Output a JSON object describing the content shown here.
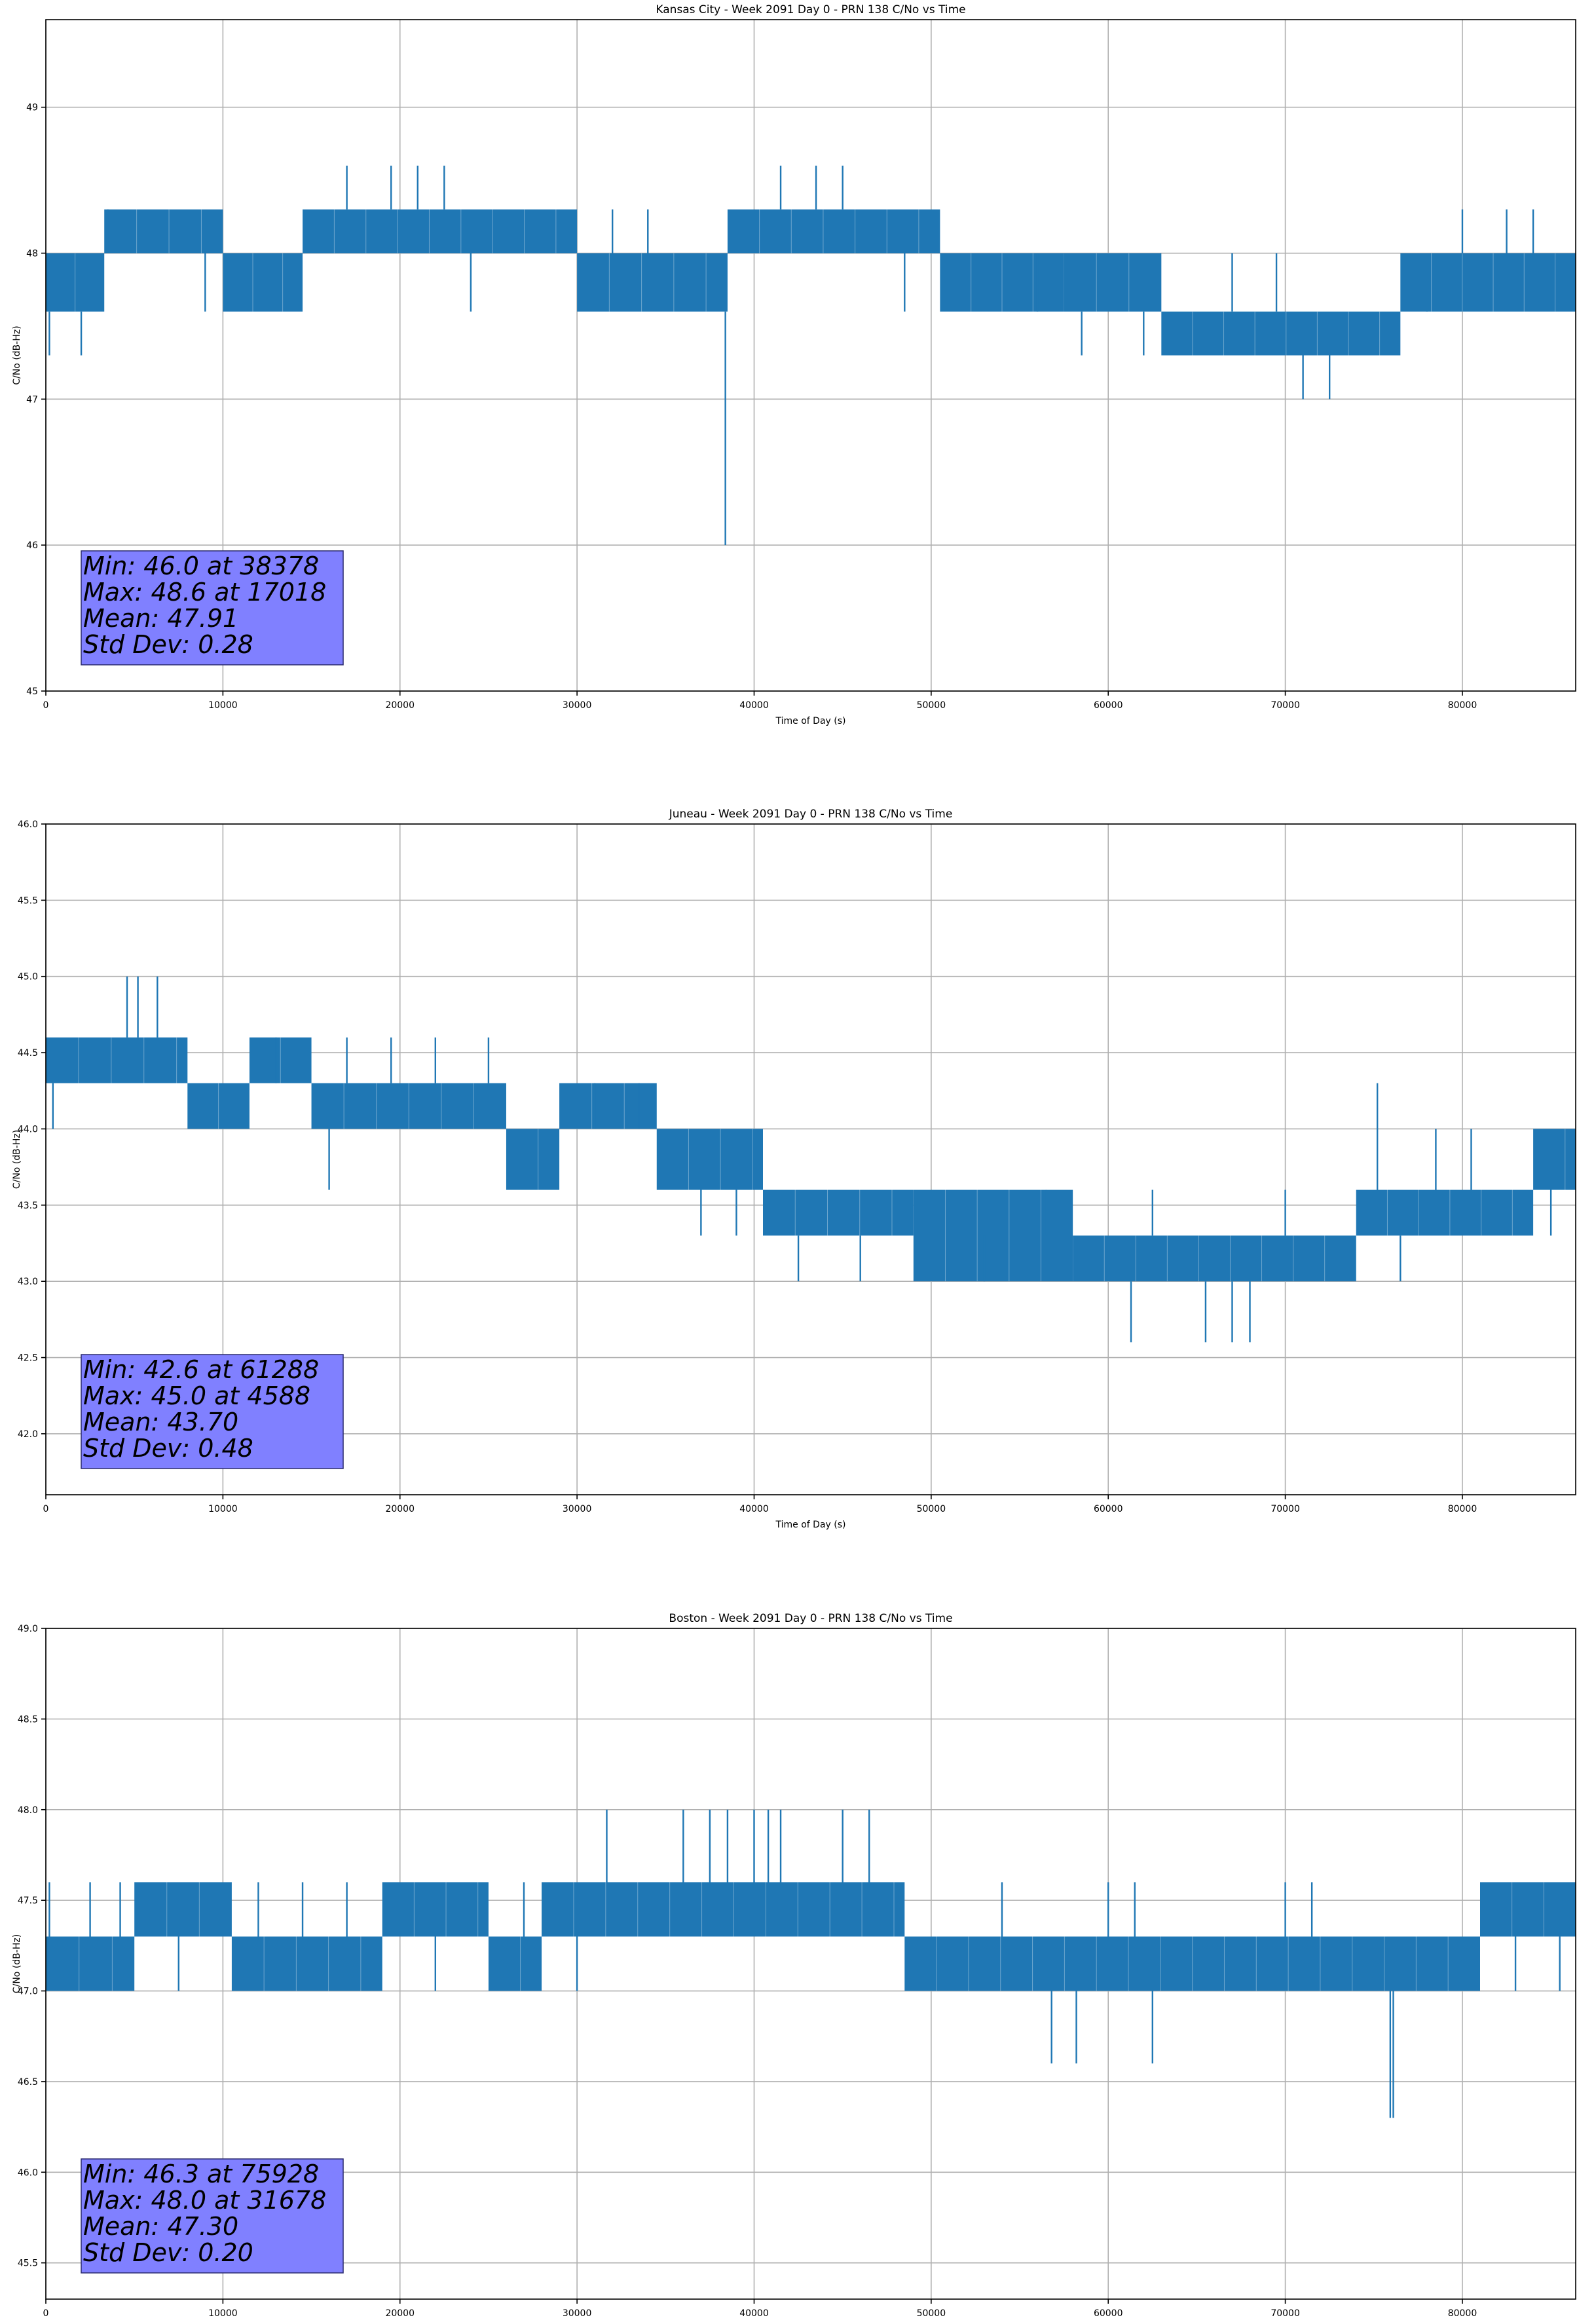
{
  "figure": {
    "line_color": "#1f77b4",
    "stats_box_color": "#8080ff",
    "grid_color": "#b0b0b0"
  },
  "chart_data": [
    {
      "type": "line",
      "title": "Kansas City - Week 2091 Day 0 - PRN 138 C/No vs Time",
      "xlabel": "Time of Day (s)",
      "ylabel": "C/No (dB-Hz)",
      "xlim": [
        0,
        86400
      ],
      "ylim": [
        45,
        49.6
      ],
      "xticks": [
        0,
        10000,
        20000,
        30000,
        40000,
        50000,
        60000,
        70000,
        80000
      ],
      "xtick_labels": [
        "0",
        "10000",
        "20000",
        "30000",
        "40000",
        "50000",
        "60000",
        "70000",
        "80000"
      ],
      "yticks": [
        45,
        46,
        47,
        48,
        49
      ],
      "ytick_labels": [
        "45",
        "46",
        "47",
        "48",
        "49"
      ],
      "grid": true,
      "series": [
        {
          "name": "C/No",
          "segments": [
            {
              "x0": 0,
              "x1": 3300,
              "low": 47.6,
              "high": 48.0
            },
            {
              "x0": 3300,
              "x1": 10000,
              "low": 48.0,
              "high": 48.3
            },
            {
              "x0": 10000,
              "x1": 14500,
              "low": 47.6,
              "high": 48.0
            },
            {
              "x0": 14500,
              "x1": 30000,
              "low": 48.0,
              "high": 48.3
            },
            {
              "x0": 30000,
              "x1": 38500,
              "low": 47.6,
              "high": 48.0
            },
            {
              "x0": 38500,
              "x1": 50500,
              "low": 48.0,
              "high": 48.3
            },
            {
              "x0": 50500,
              "x1": 57500,
              "low": 47.6,
              "high": 48.0
            },
            {
              "x0": 57500,
              "x1": 63000,
              "low": 47.6,
              "high": 48.0
            },
            {
              "x0": 63000,
              "x1": 76500,
              "low": 47.3,
              "high": 47.6
            },
            {
              "x0": 76500,
              "x1": 86400,
              "low": 47.6,
              "high": 48.0
            }
          ],
          "spikes": [
            [
              200,
              47.3,
              47.6
            ],
            [
              2000,
              47.3,
              47.6
            ],
            [
              3500,
              48.0,
              48.3
            ],
            [
              9000,
              47.6,
              48.0
            ],
            [
              17000,
              48.3,
              48.6
            ],
            [
              19500,
              48.3,
              48.6
            ],
            [
              21000,
              48.3,
              48.6
            ],
            [
              22500,
              48.3,
              48.6
            ],
            [
              24000,
              47.6,
              48.0
            ],
            [
              32000,
              48.0,
              48.3
            ],
            [
              34000,
              48.0,
              48.3
            ],
            [
              38378,
              46.0,
              47.6
            ],
            [
              41500,
              48.3,
              48.6
            ],
            [
              43500,
              48.3,
              48.6
            ],
            [
              45000,
              48.3,
              48.6
            ],
            [
              48500,
              47.6,
              48.0
            ],
            [
              56000,
              47.6,
              48.0
            ],
            [
              58500,
              47.3,
              47.6
            ],
            [
              62000,
              47.3,
              47.6
            ],
            [
              67000,
              47.6,
              48.0
            ],
            [
              69500,
              47.6,
              48.0
            ],
            [
              71000,
              47.0,
              47.3
            ],
            [
              72500,
              47.0,
              47.3
            ],
            [
              78000,
              47.6,
              48.0
            ],
            [
              80000,
              48.0,
              48.3
            ],
            [
              82500,
              48.0,
              48.3
            ],
            [
              84000,
              48.0,
              48.3
            ]
          ]
        }
      ],
      "stats": [
        "Min: 46.0 at 38378",
        "Max: 48.6 at 17018",
        "Mean: 47.91",
        "Std Dev: 0.28"
      ]
    },
    {
      "type": "line",
      "title": "Juneau - Week 2091 Day 0 - PRN 138 C/No vs Time",
      "xlabel": "Time of Day (s)",
      "ylabel": "C/No (dB-Hz)",
      "xlim": [
        0,
        86400
      ],
      "ylim": [
        41.6,
        46.0
      ],
      "xticks": [
        0,
        10000,
        20000,
        30000,
        40000,
        50000,
        60000,
        70000,
        80000
      ],
      "xtick_labels": [
        "0",
        "10000",
        "20000",
        "30000",
        "40000",
        "50000",
        "60000",
        "70000",
        "80000"
      ],
      "yticks": [
        42.0,
        42.5,
        43.0,
        43.5,
        44.0,
        44.5,
        45.0,
        45.5,
        46.0
      ],
      "ytick_labels": [
        "42.0",
        "42.5",
        "43.0",
        "43.5",
        "44.0",
        "44.5",
        "45.0",
        "45.5",
        "46.0"
      ],
      "grid": true,
      "series": [
        {
          "name": "C/No",
          "segments": [
            {
              "x0": 0,
              "x1": 8000,
              "low": 44.3,
              "high": 44.6
            },
            {
              "x0": 8000,
              "x1": 11500,
              "low": 44.0,
              "high": 44.3
            },
            {
              "x0": 11500,
              "x1": 15000,
              "low": 44.3,
              "high": 44.6
            },
            {
              "x0": 15000,
              "x1": 26000,
              "low": 44.0,
              "high": 44.3
            },
            {
              "x0": 26000,
              "x1": 29000,
              "low": 43.6,
              "high": 44.0
            },
            {
              "x0": 29000,
              "x1": 34500,
              "low": 44.0,
              "high": 44.3
            },
            {
              "x0": 34500,
              "x1": 40500,
              "low": 43.6,
              "high": 44.0
            },
            {
              "x0": 40500,
              "x1": 49000,
              "low": 43.3,
              "high": 43.6
            },
            {
              "x0": 49000,
              "x1": 58000,
              "low": 43.0,
              "high": 43.6
            },
            {
              "x0": 58000,
              "x1": 74000,
              "low": 43.0,
              "high": 43.3
            },
            {
              "x0": 74000,
              "x1": 84000,
              "low": 43.3,
              "high": 43.6
            },
            {
              "x0": 84000,
              "x1": 86400,
              "low": 43.6,
              "high": 44.0
            }
          ],
          "spikes": [
            [
              400,
              44.0,
              44.3
            ],
            [
              4588,
              44.6,
              45.0
            ],
            [
              5200,
              44.6,
              45.0
            ],
            [
              6300,
              44.6,
              45.0
            ],
            [
              13000,
              44.3,
              44.6
            ],
            [
              16000,
              43.6,
              44.0
            ],
            [
              17000,
              44.3,
              44.6
            ],
            [
              19500,
              44.3,
              44.6
            ],
            [
              22000,
              44.3,
              44.6
            ],
            [
              25000,
              44.3,
              44.6
            ],
            [
              31000,
              44.0,
              44.3
            ],
            [
              33500,
              44.0,
              44.3
            ],
            [
              37000,
              43.3,
              43.6
            ],
            [
              39000,
              43.3,
              43.6
            ],
            [
              42500,
              43.0,
              43.3
            ],
            [
              46000,
              43.0,
              43.3
            ],
            [
              53000,
              43.0,
              43.3
            ],
            [
              56500,
              43.3,
              43.6
            ],
            [
              61288,
              42.6,
              43.0
            ],
            [
              62500,
              43.6,
              43.3
            ],
            [
              65500,
              42.6,
              43.0
            ],
            [
              67000,
              42.6,
              43.0
            ],
            [
              68000,
              42.6,
              43.0
            ],
            [
              70000,
              43.3,
              43.6
            ],
            [
              75200,
              43.6,
              44.3
            ],
            [
              76500,
              43.0,
              43.3
            ],
            [
              78500,
              43.6,
              44.0
            ],
            [
              80500,
              43.6,
              44.0
            ],
            [
              85000,
              43.3,
              43.6
            ]
          ]
        }
      ],
      "stats": [
        "Min: 42.6 at 61288",
        "Max: 45.0 at 4588",
        "Mean: 43.70",
        "Std Dev: 0.48"
      ]
    },
    {
      "type": "line",
      "title": "Boston - Week 2091 Day 0 - PRN 138 C/No vs Time",
      "xlabel": "Time of Day (s)",
      "ylabel": "C/No (dB-Hz)",
      "xlim": [
        0,
        86400
      ],
      "ylim": [
        45.3,
        49.0
      ],
      "xticks": [
        0,
        10000,
        20000,
        30000,
        40000,
        50000,
        60000,
        70000,
        80000
      ],
      "xtick_labels": [
        "0",
        "10000",
        "20000",
        "30000",
        "40000",
        "50000",
        "60000",
        "70000",
        "80000"
      ],
      "yticks": [
        45.5,
        46.0,
        46.5,
        47.0,
        47.5,
        48.0,
        48.5,
        49.0
      ],
      "ytick_labels": [
        "45.5",
        "46.0",
        "46.5",
        "47.0",
        "47.5",
        "48.0",
        "48.5",
        "49.0"
      ],
      "grid": true,
      "series": [
        {
          "name": "C/No",
          "segments": [
            {
              "x0": 0,
              "x1": 5000,
              "low": 47.0,
              "high": 47.3
            },
            {
              "x0": 5000,
              "x1": 10500,
              "low": 47.3,
              "high": 47.6
            },
            {
              "x0": 10500,
              "x1": 19000,
              "low": 47.0,
              "high": 47.3
            },
            {
              "x0": 19000,
              "x1": 25000,
              "low": 47.3,
              "high": 47.6
            },
            {
              "x0": 25000,
              "x1": 28000,
              "low": 47.0,
              "high": 47.3
            },
            {
              "x0": 28000,
              "x1": 48500,
              "low": 47.3,
              "high": 47.6
            },
            {
              "x0": 48500,
              "x1": 81000,
              "low": 47.0,
              "high": 47.3
            },
            {
              "x0": 81000,
              "x1": 86400,
              "low": 47.3,
              "high": 47.6
            }
          ],
          "spikes": [
            [
              200,
              47.3,
              47.6
            ],
            [
              2500,
              47.3,
              47.6
            ],
            [
              4200,
              47.3,
              47.6
            ],
            [
              7500,
              47.0,
              47.3
            ],
            [
              12000,
              47.3,
              47.6
            ],
            [
              14500,
              47.3,
              47.6
            ],
            [
              17000,
              47.3,
              47.6
            ],
            [
              22000,
              47.0,
              47.3
            ],
            [
              27000,
              47.3,
              47.6
            ],
            [
              30000,
              47.0,
              47.3
            ],
            [
              31678,
              47.6,
              48.0
            ],
            [
              36000,
              47.6,
              48.0
            ],
            [
              37500,
              47.6,
              48.0
            ],
            [
              38500,
              47.6,
              48.0
            ],
            [
              40000,
              47.6,
              48.0
            ],
            [
              40800,
              47.6,
              48.0
            ],
            [
              41500,
              47.6,
              48.0
            ],
            [
              45000,
              47.6,
              48.0
            ],
            [
              46500,
              47.6,
              48.0
            ],
            [
              54000,
              47.3,
              47.6
            ],
            [
              56800,
              46.6,
              47.0
            ],
            [
              58200,
              46.6,
              47.0
            ],
            [
              60000,
              47.3,
              47.6
            ],
            [
              61500,
              47.3,
              47.6
            ],
            [
              62500,
              46.6,
              47.0
            ],
            [
              70000,
              47.3,
              47.6
            ],
            [
              71500,
              47.3,
              47.6
            ],
            [
              75928,
              46.3,
              47.0
            ],
            [
              76100,
              46.3,
              47.0
            ],
            [
              83000,
              47.0,
              47.3
            ],
            [
              85500,
              47.0,
              47.3
            ]
          ]
        }
      ],
      "stats": [
        "Min: 46.3 at 75928",
        "Max: 48.0 at 31678",
        "Mean: 47.30",
        "Std Dev: 0.20"
      ]
    }
  ]
}
